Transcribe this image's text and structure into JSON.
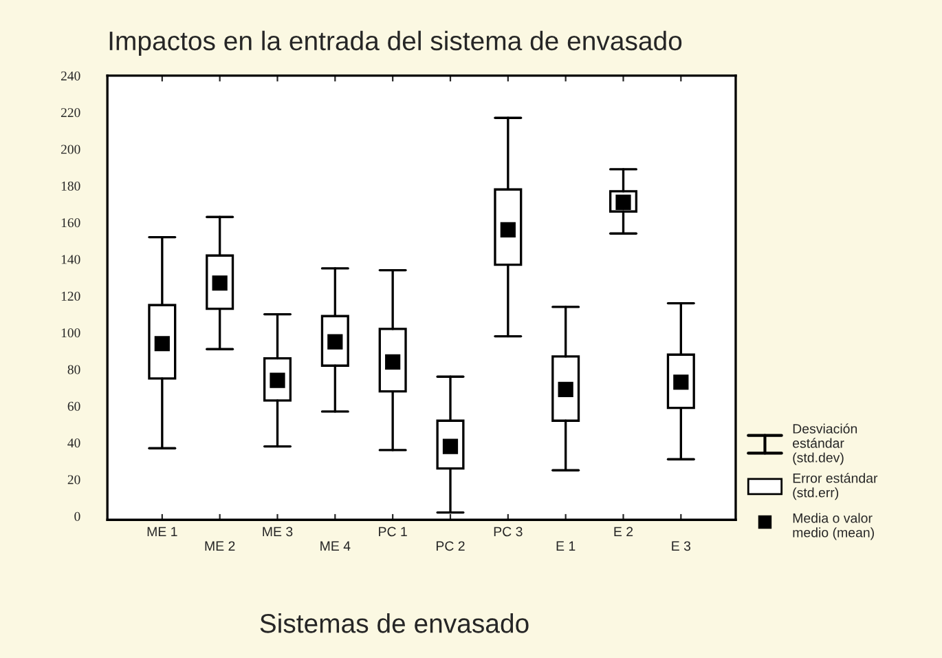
{
  "chart_data": {
    "type": "box",
    "title": "Impactos en la entrada del sistema de envasado",
    "xlabel": "Sistemas de envasado",
    "categories": [
      "ME 1",
      "ME 2",
      "ME 3",
      "ME 4",
      "PC 1",
      "PC 2",
      "PC 3",
      "E 1",
      "E 2",
      "E 3"
    ],
    "boxes": [
      {
        "low": 37,
        "q1": 75,
        "median": 94,
        "q3": 115,
        "high": 152
      },
      {
        "low": 91,
        "q1": 113,
        "median": 127,
        "q3": 142,
        "high": 163
      },
      {
        "low": 38,
        "q1": 63,
        "median": 74,
        "q3": 86,
        "high": 110
      },
      {
        "low": 57,
        "q1": 82,
        "median": 95,
        "q3": 109,
        "high": 135
      },
      {
        "low": 36,
        "q1": 68,
        "median": 84,
        "q3": 102,
        "high": 134
      },
      {
        "low": 2,
        "q1": 26,
        "median": 38,
        "q3": 52,
        "high": 76
      },
      {
        "low": 98,
        "q1": 137,
        "median": 156,
        "q3": 178,
        "high": 217
      },
      {
        "low": 25,
        "q1": 52,
        "median": 69,
        "q3": 87,
        "high": 114
      },
      {
        "low": 154,
        "q1": 166,
        "median": 171,
        "q3": 177,
        "high": 189
      },
      {
        "low": 31,
        "q1": 59,
        "median": 73,
        "q3": 88,
        "high": 116
      }
    ],
    "ylim": [
      -2,
      240
    ],
    "yticks": [
      0,
      20,
      40,
      60,
      80,
      100,
      120,
      140,
      160,
      180,
      200,
      220,
      240
    ],
    "grid": false,
    "marker": "square",
    "annotations": [
      "Desviación estándar (std.dev)",
      "Error estándar (std.err)",
      "Media o valor medio (mean)"
    ]
  }
}
